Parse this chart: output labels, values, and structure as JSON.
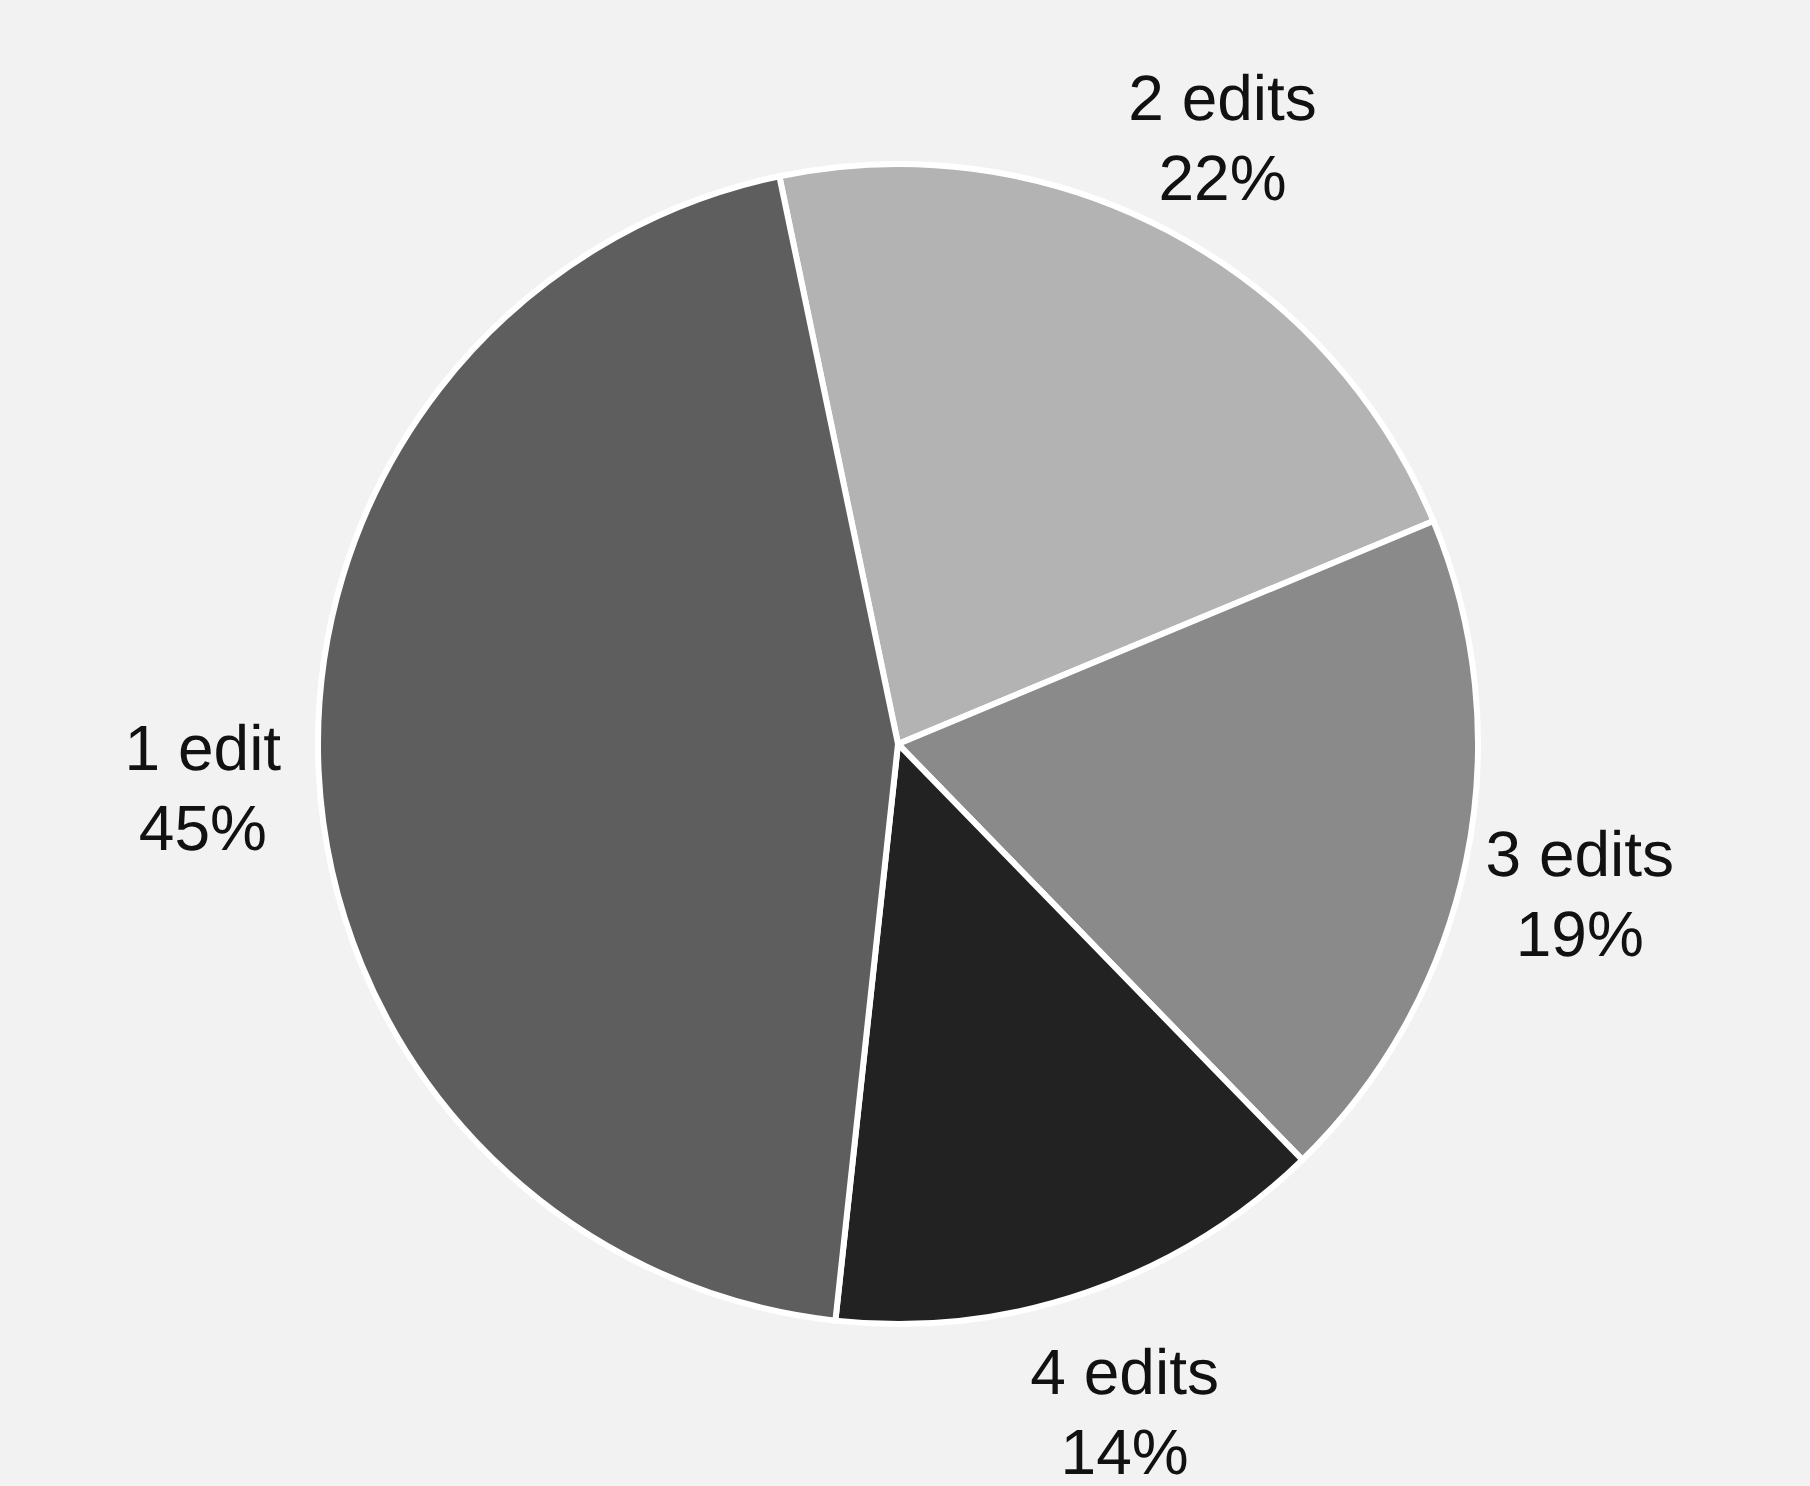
{
  "chart_data": {
    "type": "pie",
    "categories": [
      "2 edits",
      "3 edits",
      "4 edits",
      "1 edit"
    ],
    "values": [
      22,
      19,
      14,
      45
    ],
    "colors": [
      "#b3b3b3",
      "#8a8a8a",
      "#222222",
      "#5e5e5e"
    ],
    "value_labels": [
      "22%",
      "19%",
      "14%",
      "45%"
    ]
  }
}
